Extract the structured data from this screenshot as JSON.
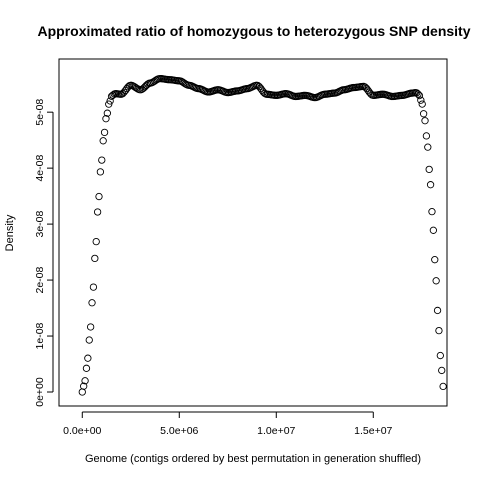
{
  "chart_data": {
    "type": "scatter",
    "title": "Approximated ratio of homozygous to heterozygous SNP density",
    "xlabel": "Genome (contigs ordered by best permutation in generation shuffled)",
    "ylabel": "Density",
    "xlim": [
      -1200000,
      18800000
    ],
    "ylim": [
      -2.5e-09,
      5.95e-08
    ],
    "x_ticks": [
      0,
      5000000,
      10000000,
      15000000
    ],
    "x_tick_labels": [
      "0.0e+00",
      "5.0e+06",
      "1.0e+07",
      "1.5e+07"
    ],
    "y_ticks": [
      0,
      1e-08,
      2e-08,
      3e-08,
      4e-08,
      5e-08
    ],
    "y_tick_labels": [
      "0e+00",
      "1e-08",
      "2e-08",
      "3e-08",
      "4e-08",
      "5e-08"
    ],
    "grid": false,
    "marker": "open-circle",
    "curve_x": [
      0,
      140000,
      280000,
      420000,
      560000,
      700000,
      840000,
      980000,
      1120000,
      1260000,
      1400000,
      1540000,
      1700000,
      2000000,
      2500000,
      3000000,
      3500000,
      4000000,
      4500000,
      5000000,
      5500000,
      6000000,
      6500000,
      7000000,
      7500000,
      8000000,
      8500000,
      9000000,
      9500000,
      10000000,
      10500000,
      11000000,
      11500000,
      12000000,
      12500000,
      13000000,
      13500000,
      14000000,
      14500000,
      15000000,
      15500000,
      16000000,
      16500000,
      17000000,
      17200000,
      17340000,
      17480000,
      17620000,
      17760000,
      17900000,
      18040000,
      18180000,
      18320000,
      18460000,
      18600000
    ],
    "curve_y": [
      0.0,
      2e-09,
      6e-09,
      1.15e-08,
      1.85e-08,
      2.65e-08,
      3.45e-08,
      4.1e-08,
      4.6e-08,
      4.95e-08,
      5.18e-08,
      5.3e-08,
      5.33e-08,
      5.32e-08,
      5.48e-08,
      5.4e-08,
      5.52e-08,
      5.6e-08,
      5.58e-08,
      5.56e-08,
      5.48e-08,
      5.42e-08,
      5.36e-08,
      5.4e-08,
      5.35e-08,
      5.38e-08,
      5.42e-08,
      5.48e-08,
      5.32e-08,
      5.3e-08,
      5.33e-08,
      5.28e-08,
      5.3e-08,
      5.26e-08,
      5.32e-08,
      5.34e-08,
      5.4e-08,
      5.44e-08,
      5.46e-08,
      5.3e-08,
      5.32e-08,
      5.28e-08,
      5.3e-08,
      5.34e-08,
      5.35e-08,
      5.32e-08,
      5.2e-08,
      4.95e-08,
      4.55e-08,
      3.95e-08,
      3.2e-08,
      2.35e-08,
      1.45e-08,
      6.5e-09,
      1e-09
    ],
    "point_count": 260
  }
}
